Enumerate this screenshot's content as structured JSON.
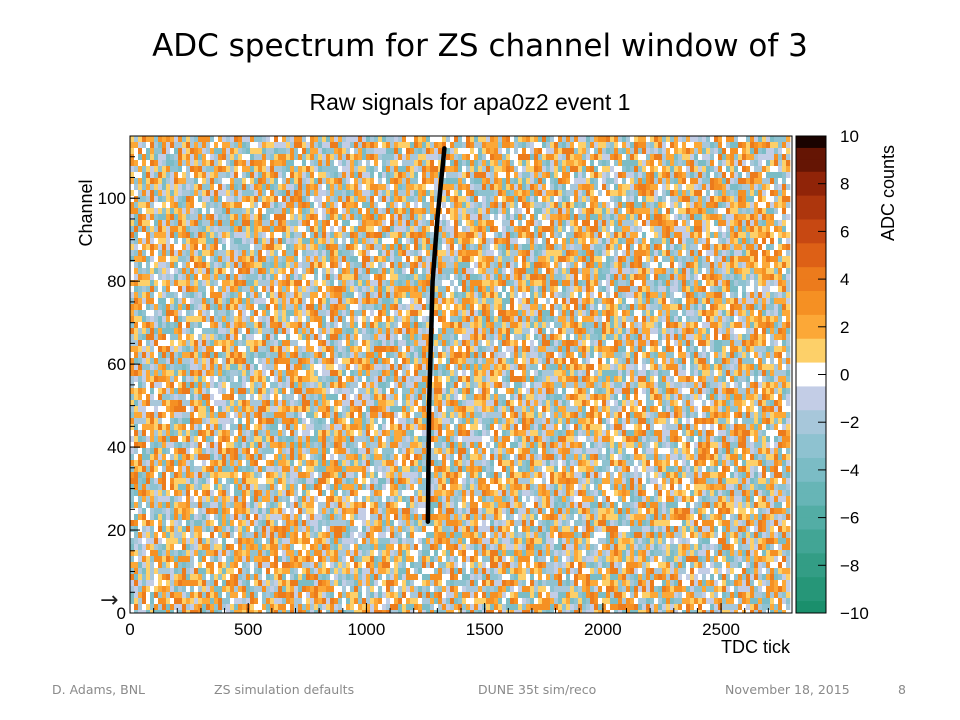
{
  "slide": {
    "title": "ADC spectrum for ZS channel window of 3"
  },
  "chart_data": {
    "type": "heatmap",
    "title": "Raw signals for apa0z2 event 1",
    "xlabel": "TDC tick",
    "ylabel": "Channel",
    "zlabel": "ADC counts",
    "xlim": [
      0,
      2800
    ],
    "ylim": [
      0,
      115
    ],
    "zlim": [
      -10,
      10
    ],
    "x_ticks": [
      0,
      500,
      1000,
      1500,
      2000,
      2500
    ],
    "y_ticks": [
      0,
      20,
      40,
      60,
      80,
      100
    ],
    "z_ticks": [
      10,
      8,
      6,
      4,
      2,
      0,
      -2,
      -4,
      -6,
      -8,
      -10
    ],
    "background": "random noise between -4 and +4 ADC counts in every channel",
    "track": {
      "description": "saturated signal track (ADC >= 10)",
      "points": [
        {
          "tdc": 1260,
          "channel": 22
        },
        {
          "tdc": 1265,
          "channel": 50
        },
        {
          "tdc": 1280,
          "channel": 80
        },
        {
          "tdc": 1300,
          "channel": 95
        },
        {
          "tdc": 1330,
          "channel": 112
        }
      ]
    },
    "palette_positive": [
      "#ffffff",
      "#fdd069",
      "#fca837",
      "#f59023",
      "#ec7b1c",
      "#dd6016",
      "#c74812",
      "#ad360d",
      "#902408",
      "#651504",
      "#1a0300"
    ],
    "palette_negative": [
      "#ffffff",
      "#c3cde6",
      "#a7c7da",
      "#8ec2d0",
      "#7bbcc5",
      "#67b5b6",
      "#53ada5",
      "#42a595",
      "#339d85",
      "#269678",
      "#1a8f6c"
    ],
    "colorbar_ticks": [
      "10",
      "8",
      "6",
      "4",
      "2",
      "0",
      "−2",
      "−4",
      "−6",
      "−8",
      "−10"
    ],
    "colors": {
      "track": "#000000",
      "marker_arrow": "#222222"
    }
  },
  "marker": {
    "glyph": "→"
  },
  "footer": {
    "author": "D. Adams, BNL",
    "topic": "ZS simulation defaults",
    "project": "DUNE 35t sim/reco",
    "date": "November 18, 2015",
    "page": "8"
  }
}
